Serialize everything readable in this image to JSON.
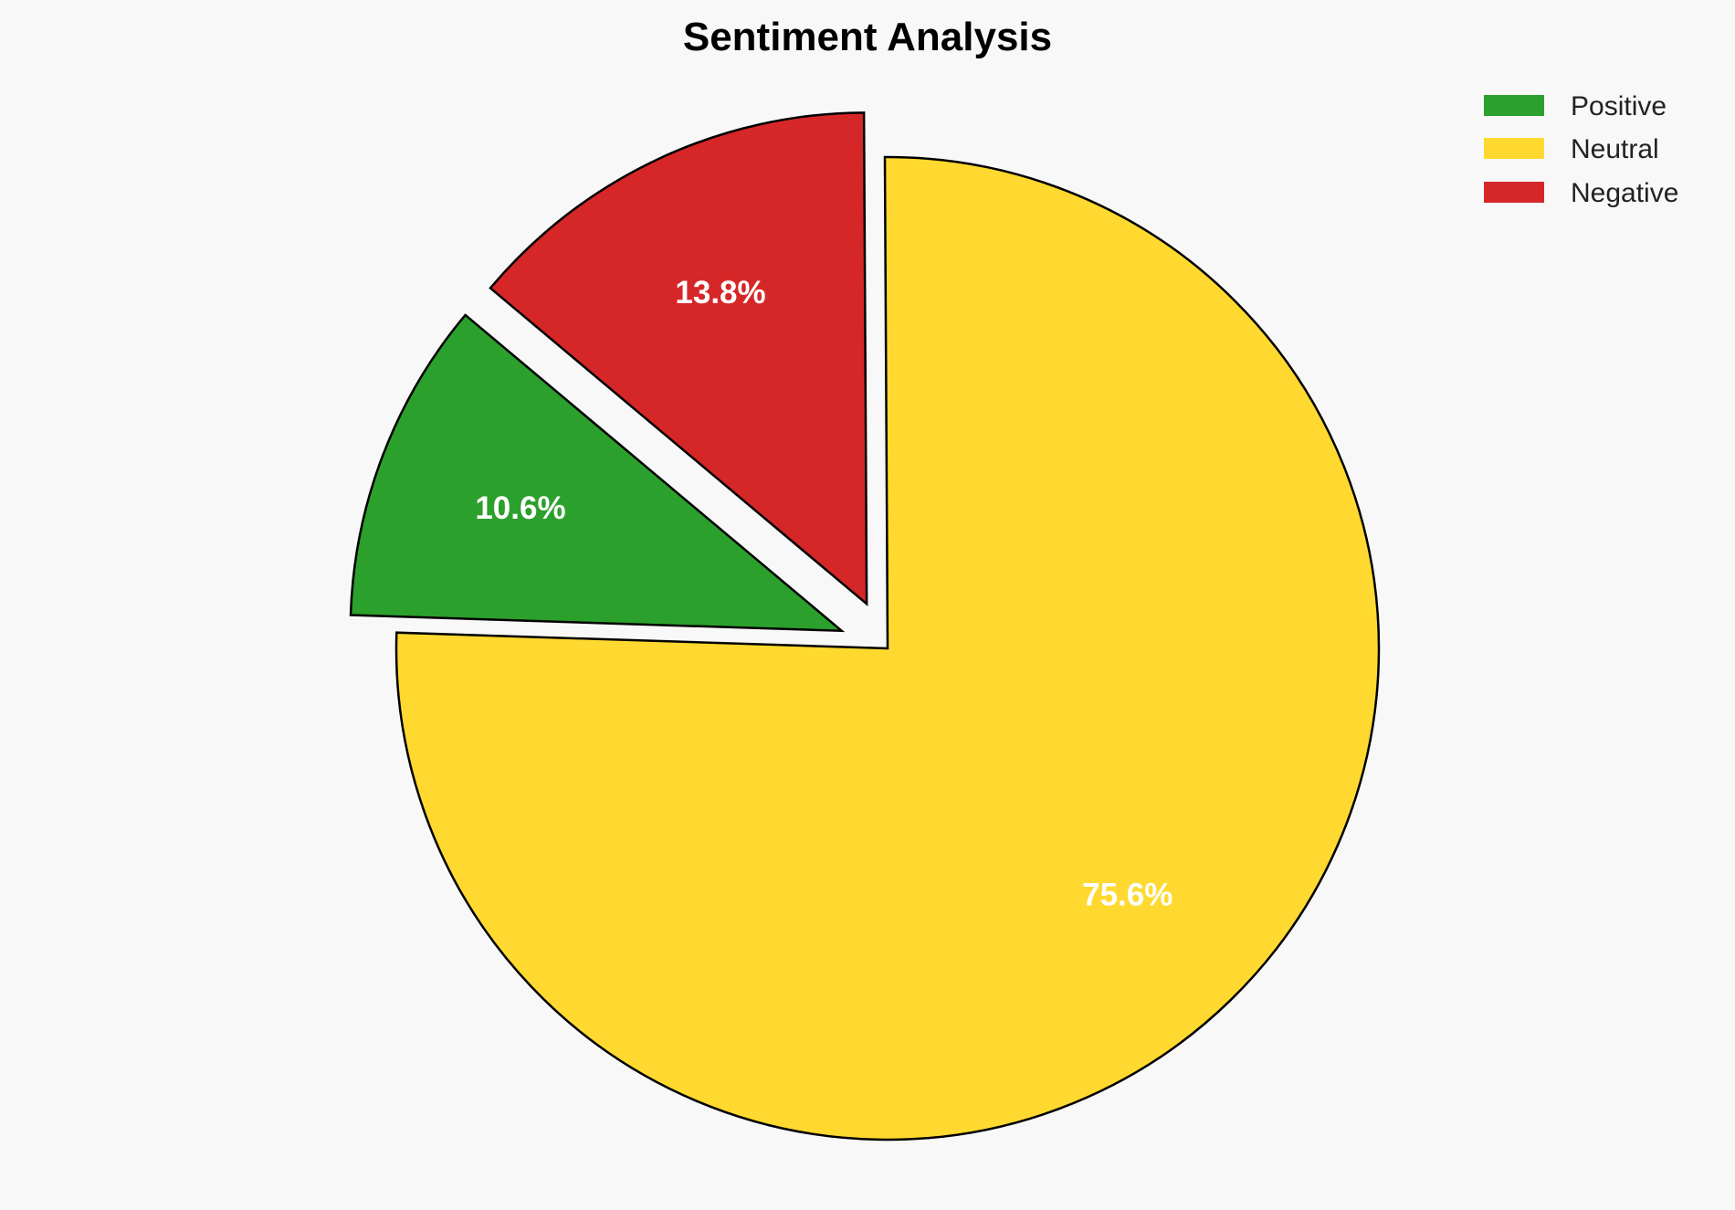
{
  "chart_data": {
    "type": "pie",
    "title": "Sentiment Analysis",
    "categories": [
      "Positive",
      "Neutral",
      "Negative"
    ],
    "values": [
      10.6,
      75.6,
      13.8
    ],
    "labels": [
      "10.6%",
      "75.6%",
      "13.8%"
    ],
    "colors": [
      "#2ca02c",
      "#ffd92f",
      "#d62728"
    ],
    "explode": [
      0.1,
      0,
      0.1
    ],
    "start_angle": 140,
    "direction": "counterclockwise",
    "edge_color": "#000000",
    "legend": {
      "placement": "top-right",
      "entries": [
        "Positive",
        "Neutral",
        "Negative"
      ]
    }
  }
}
